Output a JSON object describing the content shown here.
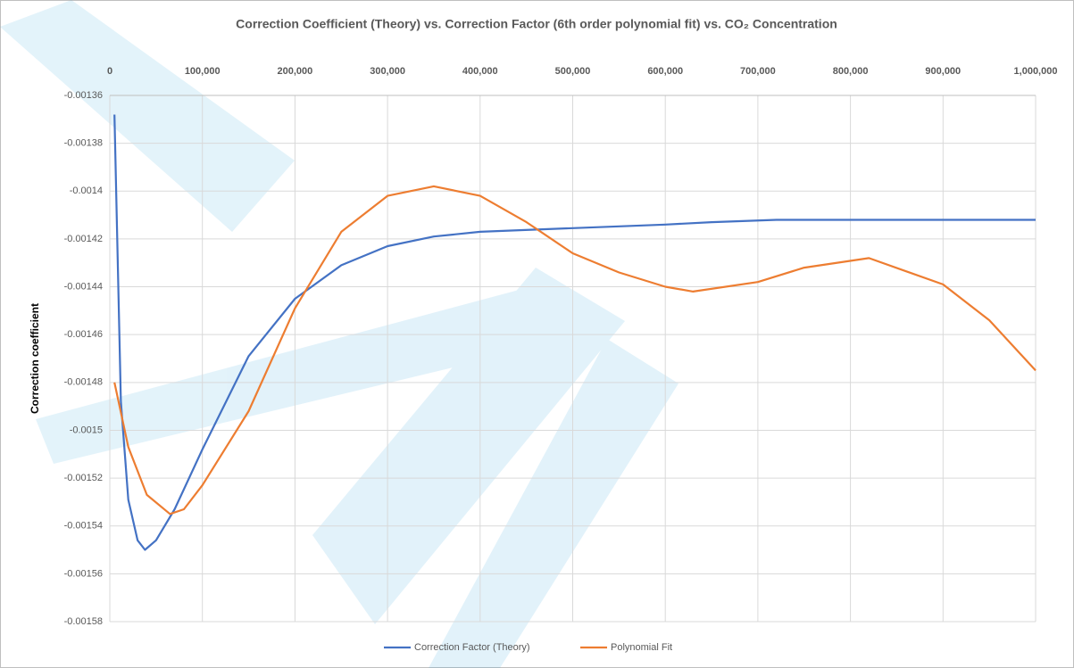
{
  "chart_data": {
    "type": "line",
    "title": "Correction Coefficient (Theory) vs. Correction Factor (6th order polynomial fit) vs. CO₂ Concentration",
    "y_label": "Correction coefficient",
    "xlim": [
      0,
      1000000
    ],
    "xticks": [
      0,
      {
        "value": 100000,
        "label": "100,000"
      },
      {
        "value": 200000,
        "label": "200,000"
      },
      {
        "value": 300000,
        "label": "300,000"
      },
      {
        "value": 400000,
        "label": "400,000"
      },
      {
        "value": 500000,
        "label": "500,000"
      },
      {
        "value": 600000,
        "label": "600,000"
      },
      {
        "value": 700000,
        "label": "700,000"
      },
      {
        "value": 800000,
        "label": "800,000"
      },
      {
        "value": 900000,
        "label": "900,000"
      },
      {
        "value": 1000000,
        "label": "1,000,000"
      }
    ],
    "ylim": [
      -0.00158,
      -0.00136
    ],
    "yticks": [
      -0.00136,
      -0.00138,
      -0.0014,
      -0.00142,
      -0.00144,
      -0.00146,
      -0.00148,
      -0.0015,
      -0.00152,
      -0.00154,
      -0.00156,
      -0.00158
    ],
    "grid": true,
    "legend": "bottom",
    "series": [
      {
        "name": "Correction Factor (Theory)",
        "color": "#4472c4",
        "x": [
          5000,
          12000,
          20000,
          30000,
          38000,
          50000,
          70000,
          100000,
          150000,
          200000,
          250000,
          300000,
          350000,
          400000,
          500000,
          600000,
          650000,
          720000,
          800000,
          1000000
        ],
        "values": [
          -0.001368,
          -0.001488,
          -0.001529,
          -0.001546,
          -0.00155,
          -0.001546,
          -0.001533,
          -0.001508,
          -0.001469,
          -0.001445,
          -0.001431,
          -0.001423,
          -0.001419,
          -0.001417,
          -0.0014155,
          -0.001414,
          -0.001413,
          -0.001412,
          -0.001412,
          -0.001412
        ]
      },
      {
        "name": "Polynomial Fit",
        "color": "#ed7d31",
        "x": [
          5000,
          20000,
          40000,
          65000,
          80000,
          100000,
          150000,
          200000,
          250000,
          300000,
          350000,
          400000,
          450000,
          500000,
          550000,
          600000,
          630000,
          700000,
          750000,
          820000,
          900000,
          950000,
          1000000
        ],
        "values": [
          -0.00148,
          -0.001507,
          -0.001527,
          -0.001535,
          -0.001533,
          -0.001523,
          -0.001492,
          -0.001449,
          -0.001417,
          -0.001402,
          -0.001398,
          -0.001402,
          -0.001413,
          -0.001426,
          -0.001434,
          -0.00144,
          -0.001442,
          -0.001438,
          -0.001432,
          -0.001428,
          -0.001439,
          -0.001454,
          -0.001475
        ]
      }
    ]
  }
}
